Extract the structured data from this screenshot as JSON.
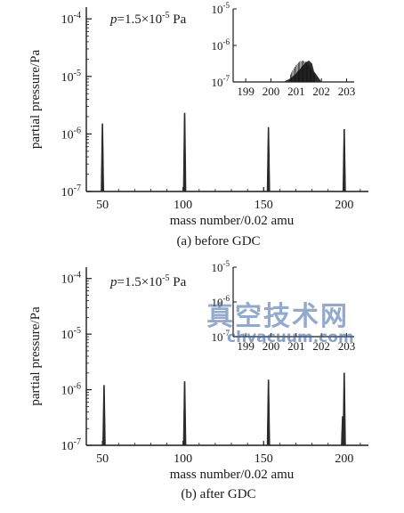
{
  "chart_data": [
    {
      "type": "bar",
      "caption": "(a) before GDC",
      "xlabel": "mass number/0.02 amu",
      "ylabel": "partial pressure/Pa",
      "annotation": {
        "text_before": "p",
        "text_after": "=1.5×10",
        "exp": "-5",
        "unit": " Pa"
      },
      "xlim": [
        40,
        215
      ],
      "ylim": [
        1e-07,
        0.00016
      ],
      "y_scale": "log",
      "x_ticks": [
        "50",
        "100",
        "150",
        "200"
      ],
      "x_tick_values": [
        50,
        100,
        150,
        200
      ],
      "y_ticks": [
        {
          "base": "10",
          "exp": "-4",
          "value": 0.0001
        },
        {
          "base": "10",
          "exp": "-5",
          "value": 1e-05
        },
        {
          "base": "10",
          "exp": "-6",
          "value": 1e-06
        },
        {
          "base": "10",
          "exp": "-7",
          "value": 1e-07
        }
      ],
      "peaks": [
        {
          "x": 50,
          "y": 1.5e-06
        },
        {
          "x": 101,
          "y": 2.3e-06
        },
        {
          "x": 153,
          "y": 1.3e-06
        },
        {
          "x": 200,
          "y": 1.2e-06
        }
      ],
      "inset": {
        "xlim": [
          198.5,
          203.3
        ],
        "ylim": [
          1e-07,
          1e-05
        ],
        "x_ticks": [
          "199",
          "200",
          "201",
          "202",
          "203"
        ],
        "x_tick_values": [
          199,
          200,
          201,
          202,
          203
        ],
        "y_ticks": [
          {
            "base": "10",
            "exp": "-5",
            "value": 1e-05
          },
          {
            "base": "10",
            "exp": "-6",
            "value": 1e-06
          },
          {
            "base": "10",
            "exp": "-7",
            "value": 1e-07
          }
        ],
        "peak": {
          "x_start": 200.5,
          "x_end": 202.0,
          "x_max": 201.5,
          "y_max": 3.8e-07
        }
      }
    },
    {
      "type": "bar",
      "caption": "(b) after GDC",
      "xlabel": "mass number/0.02 amu",
      "ylabel": "partial pressure/Pa",
      "annotation": {
        "text_before": "p",
        "text_after": "=1.5×10",
        "exp": "-5",
        "unit": " Pa"
      },
      "xlim": [
        40,
        215
      ],
      "ylim": [
        1e-07,
        0.00016
      ],
      "y_scale": "log",
      "x_ticks": [
        "50",
        "100",
        "150",
        "200"
      ],
      "x_tick_values": [
        50,
        100,
        150,
        200
      ],
      "y_ticks": [
        {
          "base": "10",
          "exp": "-4",
          "value": 0.0001
        },
        {
          "base": "10",
          "exp": "-5",
          "value": 1e-05
        },
        {
          "base": "10",
          "exp": "-6",
          "value": 1e-06
        },
        {
          "base": "10",
          "exp": "-7",
          "value": 1e-07
        }
      ],
      "peaks": [
        {
          "x": 51,
          "y": 1.2e-06
        },
        {
          "x": 101,
          "y": 1.4e-06
        },
        {
          "x": 153,
          "y": 1.5e-06
        },
        {
          "x": 200,
          "y": 2e-06
        },
        {
          "x": 199,
          "y": 3.3e-07
        }
      ],
      "inset": {
        "xlim": [
          198.5,
          203.3
        ],
        "ylim": [
          1e-07,
          1e-05
        ],
        "x_ticks": [
          "199",
          "200",
          "201",
          "202",
          "203"
        ],
        "x_tick_values": [
          199,
          200,
          201,
          202,
          203
        ],
        "y_ticks": [
          {
            "base": "10",
            "exp": "-5",
            "value": 1e-05
          },
          {
            "base": "10",
            "exp": "-6",
            "value": 1e-06
          },
          {
            "base": "10",
            "exp": "-7",
            "value": 1e-07
          }
        ],
        "peak": null
      }
    }
  ],
  "watermark": {
    "chinese": "真空技术网",
    "latin": "chvacuum.com",
    "color": "#3c66a8"
  }
}
